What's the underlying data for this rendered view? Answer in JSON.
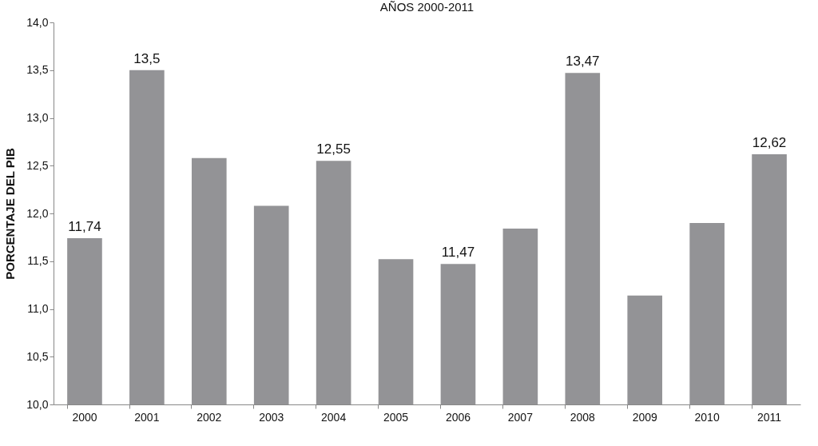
{
  "chart_data": {
    "type": "bar",
    "title": "AÑOS 2000-2011",
    "ylabel": "PORCENTAJE DEL PIB",
    "categories": [
      "2000",
      "2001",
      "2002",
      "2003",
      "2004",
      "2005",
      "2006",
      "2007",
      "2008",
      "2009",
      "2010",
      "2011"
    ],
    "values": [
      11.74,
      13.5,
      12.58,
      12.08,
      12.55,
      11.52,
      11.47,
      11.84,
      13.47,
      11.14,
      11.9,
      12.62
    ],
    "value_labels": [
      "11,74",
      "13,5",
      null,
      null,
      "12,55",
      null,
      "11,47",
      null,
      "13,47",
      null,
      null,
      "12,62"
    ],
    "color": "#939396",
    "ylim": [
      10,
      14
    ],
    "yticks": [
      {
        "value": 10,
        "label": "10,0"
      },
      {
        "value": 10.5,
        "label": "10,5"
      },
      {
        "value": 11,
        "label": "11,0"
      },
      {
        "value": 11.5,
        "label": "11,5"
      },
      {
        "value": 12,
        "label": "12,0"
      },
      {
        "value": 12.5,
        "label": "12,5"
      },
      {
        "value": 13,
        "label": "13,0"
      },
      {
        "value": 13.5,
        "label": "13,5"
      },
      {
        "value": 14,
        "label": "14,0"
      }
    ],
    "grid": false
  }
}
